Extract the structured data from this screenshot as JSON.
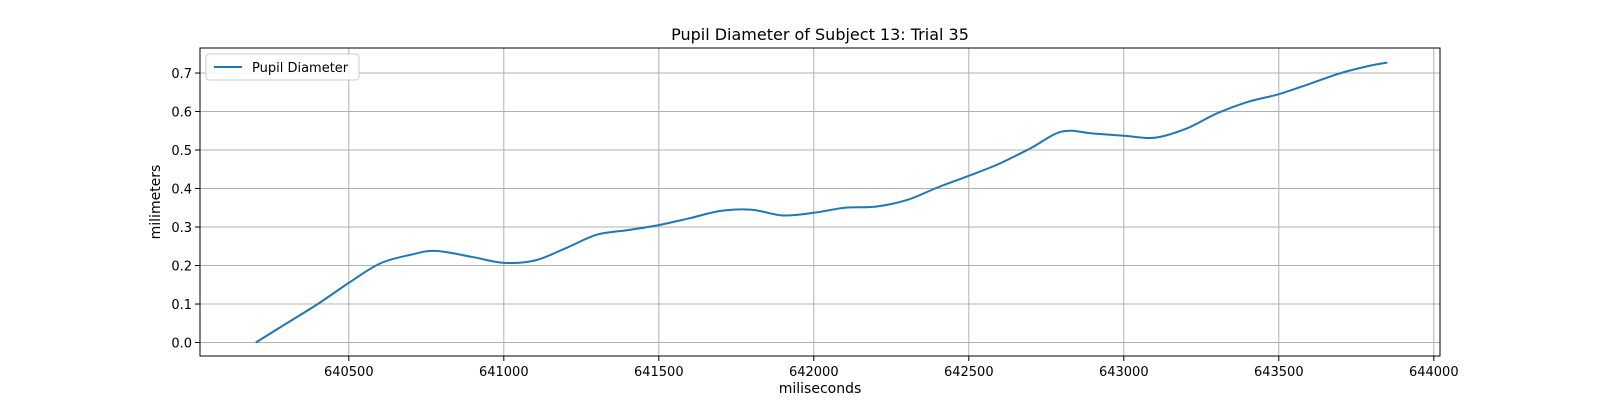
{
  "chart_data": {
    "type": "line",
    "title": "Pupil Diameter of Subject 13: Trial 35",
    "xlabel": "miliseconds",
    "ylabel": "milimeters",
    "xlim": [
      640020,
      644020
    ],
    "ylim": [
      -0.035,
      0.765
    ],
    "xticks": [
      640500,
      641000,
      641500,
      642000,
      642500,
      643000,
      643500,
      644000
    ],
    "yticks": [
      0.0,
      0.1,
      0.2,
      0.3,
      0.4,
      0.5,
      0.6,
      0.7
    ],
    "ytick_labels": [
      "0.0",
      "0.1",
      "0.2",
      "0.3",
      "0.4",
      "0.5",
      "0.6",
      "0.7"
    ],
    "grid": true,
    "legend": {
      "position": "top-left",
      "entries": [
        "Pupil Diameter"
      ]
    },
    "series": [
      {
        "name": "Pupil Diameter",
        "color": "#1f77b4",
        "x": [
          640200,
          640300,
          640400,
          640500,
          640600,
          640700,
          640780,
          640900,
          641000,
          641100,
          641200,
          641300,
          641400,
          641500,
          641600,
          641700,
          641800,
          641900,
          642000,
          642100,
          642200,
          642300,
          642400,
          642500,
          642600,
          642700,
          642800,
          642900,
          643000,
          643100,
          643200,
          643300,
          643400,
          643500,
          643600,
          643700,
          643800,
          643850
        ],
        "values": [
          0.0,
          0.05,
          0.1,
          0.155,
          0.205,
          0.228,
          0.238,
          0.222,
          0.207,
          0.213,
          0.245,
          0.28,
          0.292,
          0.305,
          0.323,
          0.342,
          0.345,
          0.33,
          0.337,
          0.35,
          0.353,
          0.37,
          0.403,
          0.433,
          0.465,
          0.505,
          0.548,
          0.543,
          0.537,
          0.532,
          0.555,
          0.595,
          0.625,
          0.645,
          0.672,
          0.7,
          0.72,
          0.727
        ]
      }
    ]
  }
}
